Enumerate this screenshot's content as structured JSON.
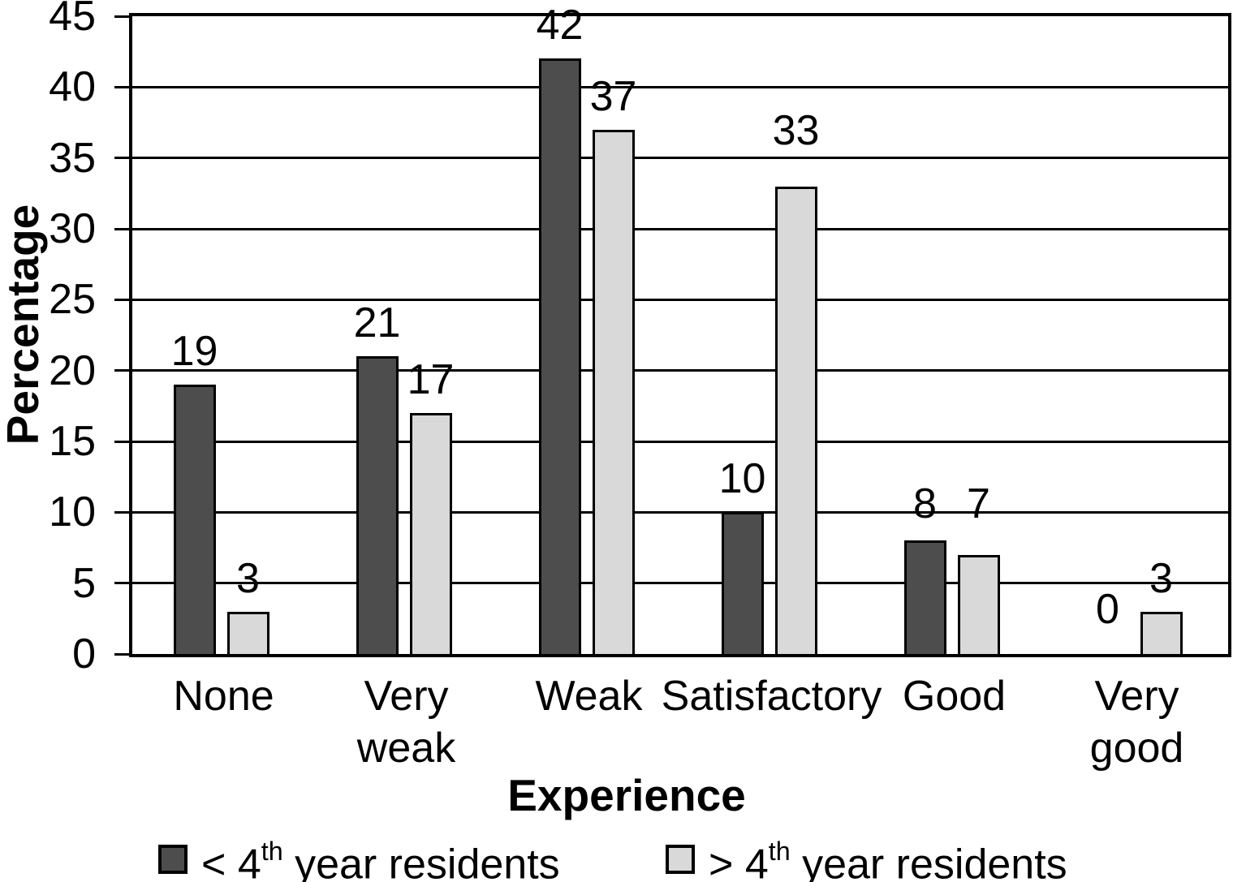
{
  "chart_data": {
    "type": "bar",
    "title": "",
    "xlabel": "Experience",
    "ylabel": "Percentage",
    "categories": [
      "None",
      "Very weak",
      "Weak",
      "Satisfactory",
      "Good",
      "Very good"
    ],
    "category_display_lines": [
      "None",
      "Very\nweak",
      "Weak",
      "Satisfactory",
      "Good",
      "Very\ngood"
    ],
    "series": [
      {
        "name": "< 4th year residents",
        "legend_prefix": "< 4",
        "legend_sup": "th",
        "legend_suffix": " year residents",
        "color": "#4d4d4d",
        "values": [
          19,
          21,
          42,
          10,
          8,
          0
        ]
      },
      {
        "name": "> 4th year residents",
        "legend_prefix": "> 4",
        "legend_sup": "th",
        "legend_suffix": " year residents",
        "color": "#d9d9d9",
        "values": [
          3,
          17,
          37,
          33,
          7,
          3
        ]
      }
    ],
    "ylim": [
      0,
      45
    ],
    "yticks": [
      0,
      5,
      10,
      15,
      20,
      25,
      30,
      35,
      40,
      45
    ],
    "grid": "horizontal",
    "legend_position": "bottom",
    "bar_value_labels": true,
    "colors": {
      "bar_border": "#000000",
      "grid_line": "#000000",
      "text": "#000000",
      "background": "#ffffff"
    }
  }
}
